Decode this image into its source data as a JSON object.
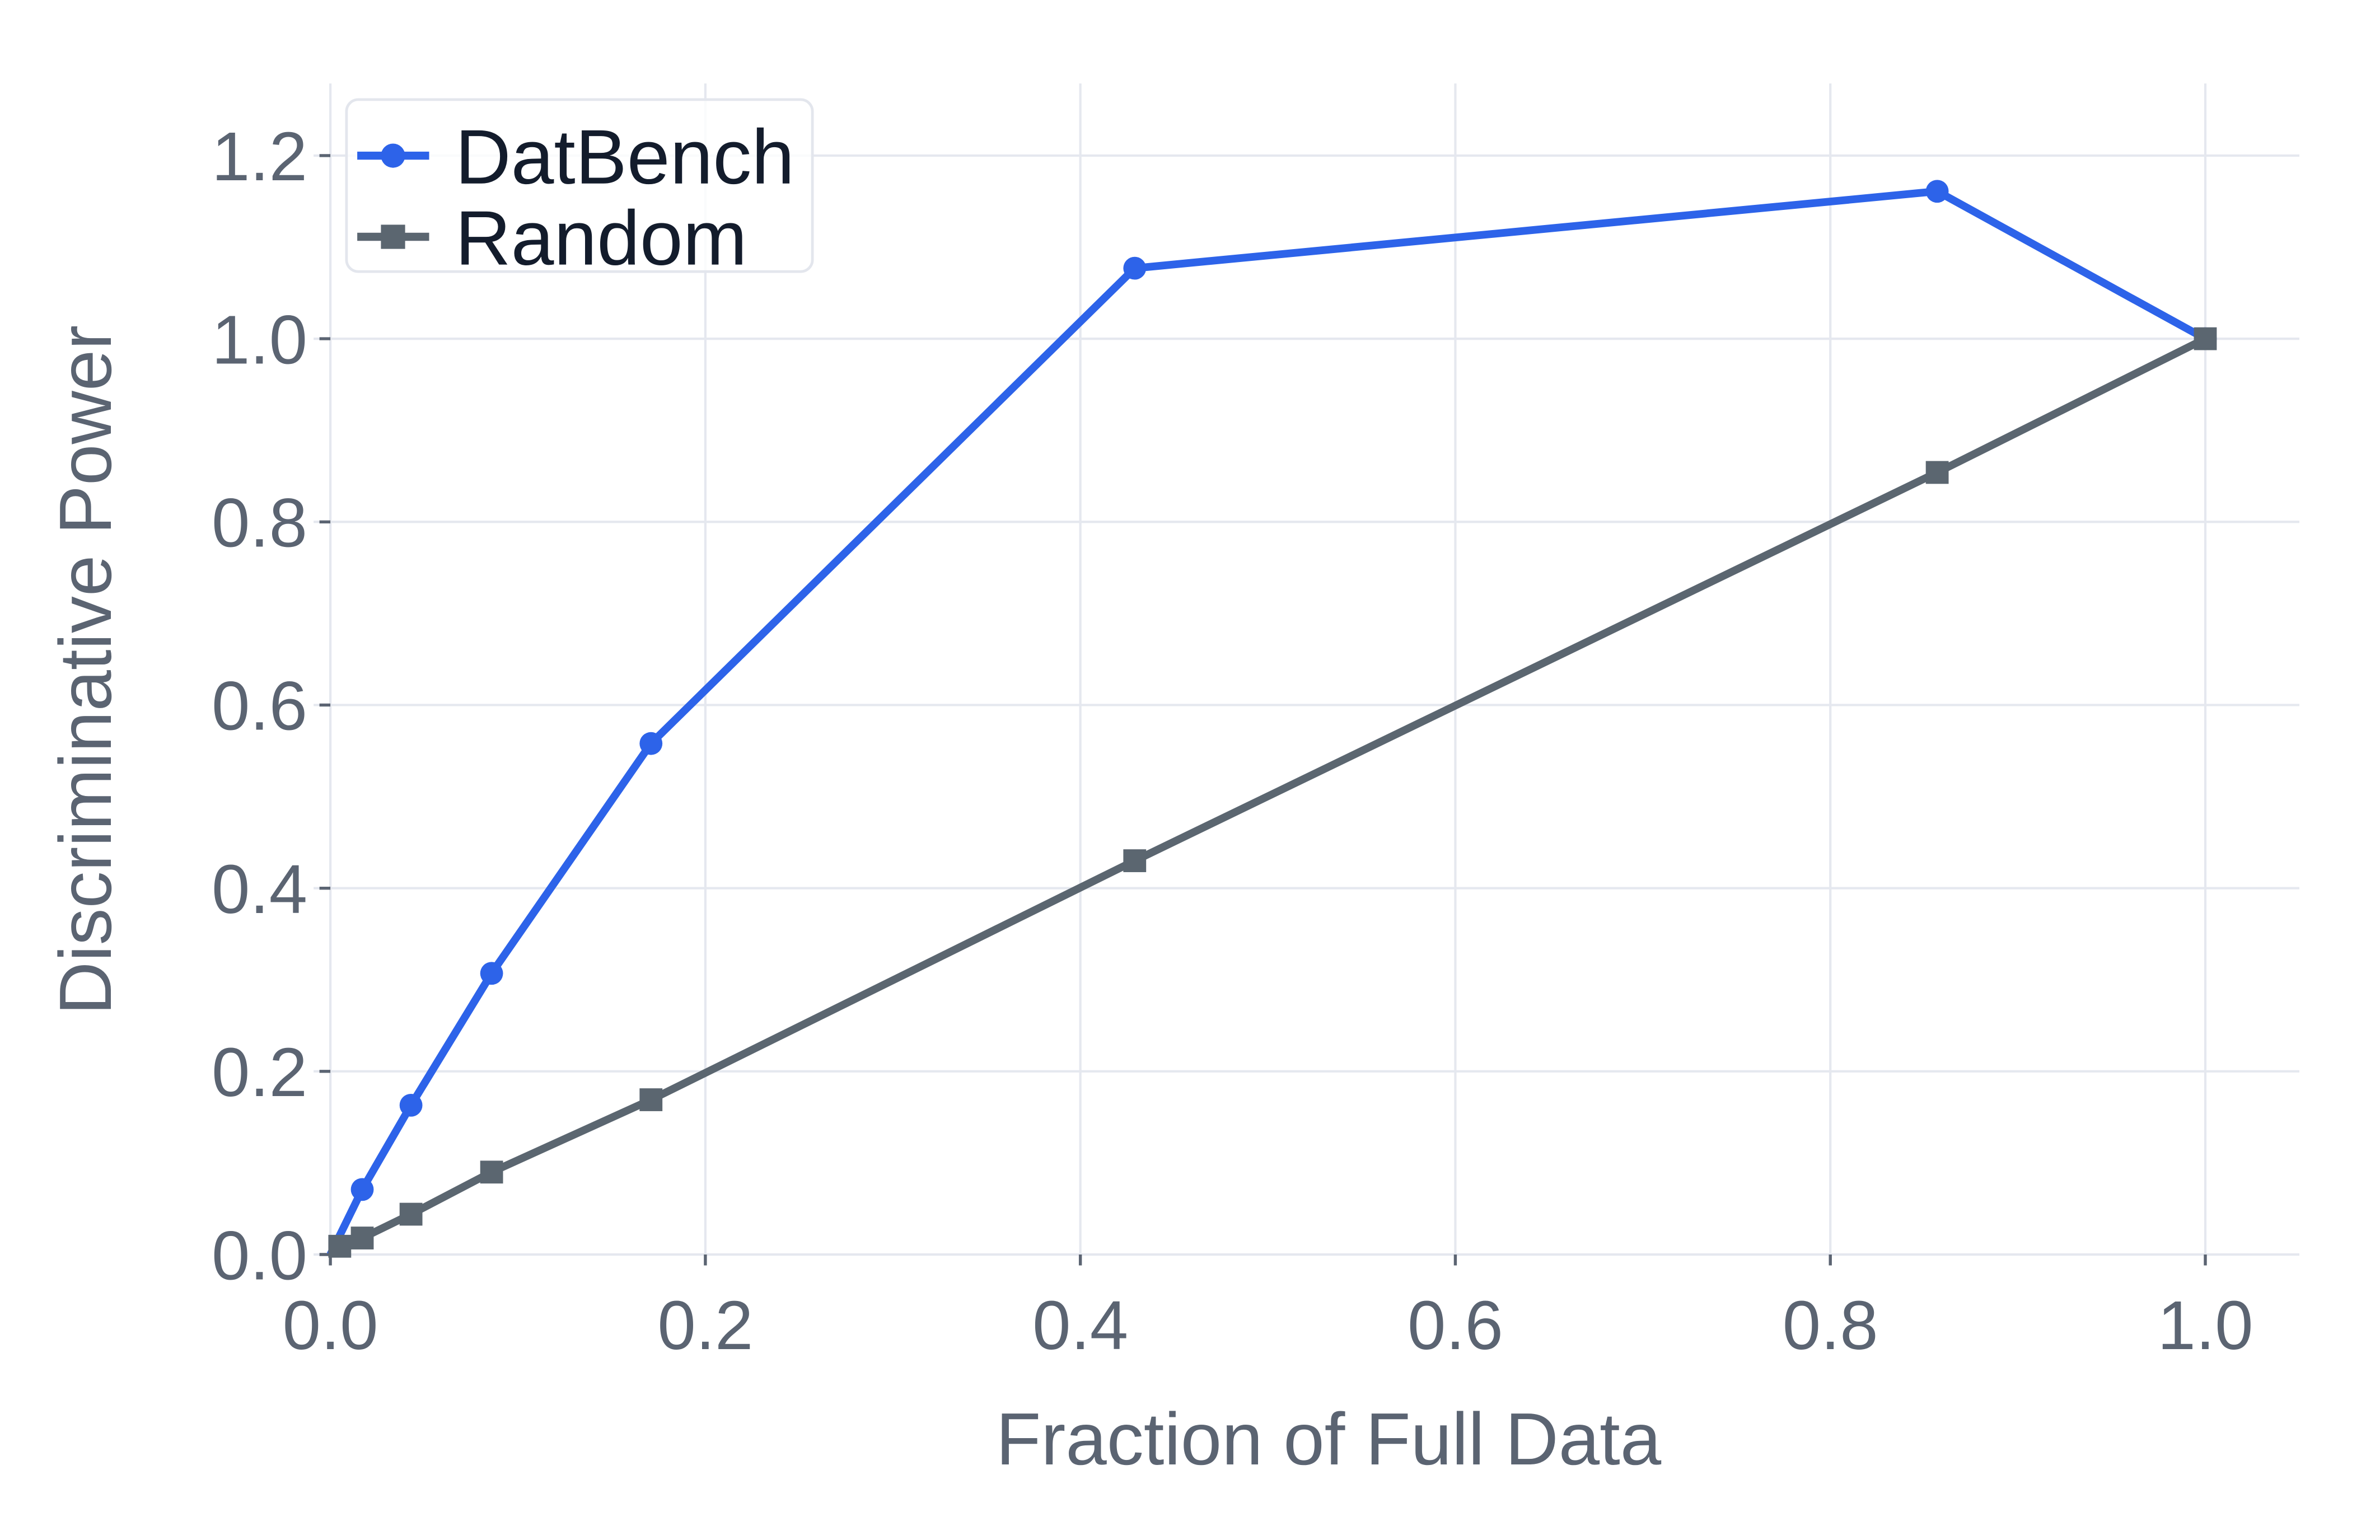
{
  "chart_data": {
    "type": "line",
    "title": "",
    "xlabel": "Fraction of Full Data",
    "ylabel": "Discriminative Power",
    "xlim": [
      -0.01,
      1.05
    ],
    "ylim": [
      0,
      1.28
    ],
    "grid": true,
    "legend_position": "upper-left",
    "x_ticks": [
      0.0,
      0.2,
      0.4,
      0.6,
      0.8,
      1.0
    ],
    "x_tick_labels": [
      "0.0",
      "0.2",
      "0.4",
      "0.6",
      "0.8",
      "1.0"
    ],
    "y_ticks": [
      0.0,
      0.2,
      0.4,
      0.6,
      0.8,
      1.0,
      1.2
    ],
    "y_tick_labels": [
      "0.0",
      "0.2",
      "0.4",
      "0.6",
      "0.8",
      "1.0",
      "1.2"
    ],
    "series": [
      {
        "name": "DatBench",
        "color": "#2d63e9",
        "marker": "circle",
        "x": [
          0.0,
          0.017,
          0.043,
          0.086,
          0.171,
          0.429,
          0.857,
          1.0
        ],
        "y": [
          0.0,
          0.071,
          0.163,
          0.307,
          0.558,
          1.077,
          1.161,
          1.0
        ]
      },
      {
        "name": "Random",
        "color": "#5b6670",
        "marker": "square",
        "x": [
          0.0,
          0.005,
          0.017,
          0.043,
          0.086,
          0.171,
          0.429,
          0.857,
          1.0
        ],
        "y": [
          0.0,
          0.009,
          0.018,
          0.044,
          0.09,
          0.169,
          0.43,
          0.854,
          1.0
        ]
      }
    ]
  },
  "legend": {
    "entries": [
      {
        "label": "DatBench"
      },
      {
        "label": "Random"
      }
    ]
  },
  "colors": {
    "background": "#ffffff",
    "grid": "#e5e8ef",
    "tick_mark": "#5b6472",
    "tick_text": "#5b6472",
    "axis_label": "#5b6472",
    "legend_text": "#131c2c",
    "legend_border": "#e3e6ed",
    "legend_fill": "rgba(255,255,255,0.8)",
    "datbench": "#2d63e9",
    "random": "#5b6670"
  }
}
